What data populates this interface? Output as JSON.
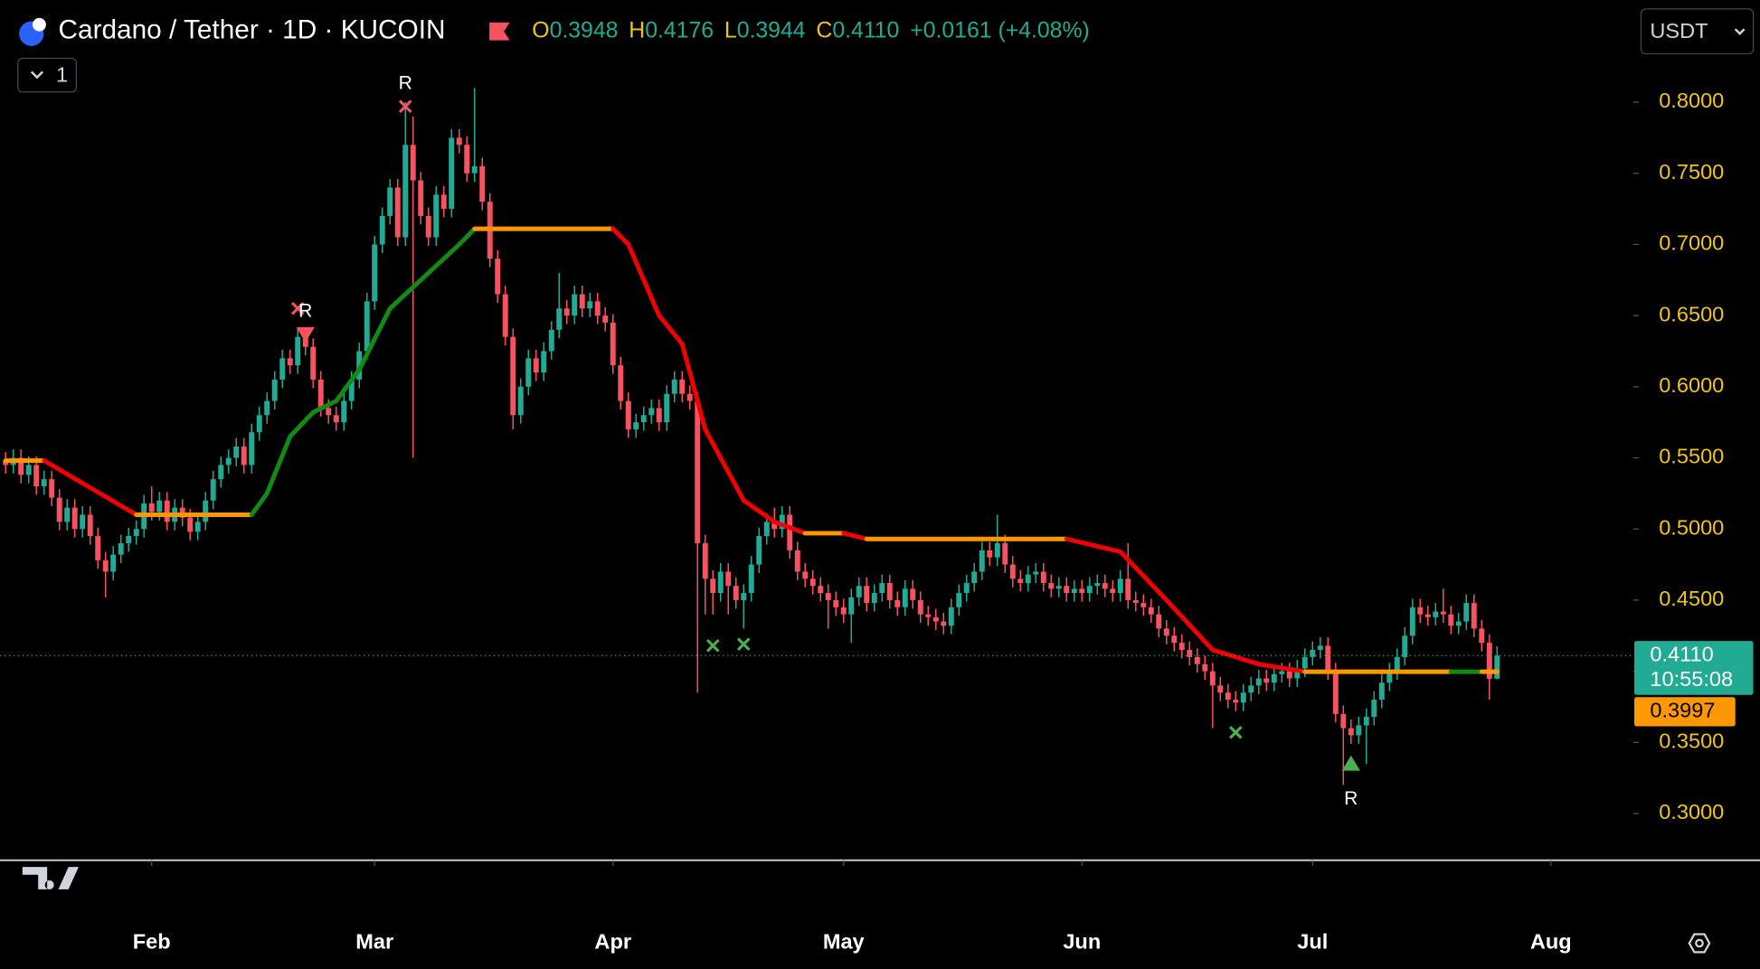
{
  "header": {
    "symbol": "Cardano / Tether · 1D · KUCOIN",
    "ohlc": [
      {
        "key": "O",
        "value": "0.3948"
      },
      {
        "key": "H",
        "value": "0.4176"
      },
      {
        "key": "L",
        "value": "0.3944"
      },
      {
        "key": "C",
        "value": "0.4110"
      }
    ],
    "change": "+0.0161 (+4.08%)",
    "indicator_count": "1",
    "currency": "USDT"
  },
  "chart_data": {
    "type": "candlestick",
    "up_color": "#22ab94",
    "down_color": "#f7525f",
    "ylim": [
      0.2672,
      0.8718
    ],
    "xlim": [
      -0.73,
      211.7
    ],
    "yticks": [
      {
        "value": 0.3,
        "label": "0.3000"
      },
      {
        "value": 0.35,
        "label": "0.3500"
      },
      {
        "value": 0.4,
        "label": "0.4000"
      },
      {
        "value": 0.45,
        "label": "0.4500"
      },
      {
        "value": 0.5,
        "label": "0.5000"
      },
      {
        "value": 0.55,
        "label": "0.5500"
      },
      {
        "value": 0.6,
        "label": "0.6000"
      },
      {
        "value": 0.65,
        "label": "0.6500"
      },
      {
        "value": 0.7,
        "label": "0.7000"
      },
      {
        "value": 0.75,
        "label": "0.7500"
      },
      {
        "value": 0.8,
        "label": "0.8000"
      }
    ],
    "xticks": [
      {
        "value": 19,
        "label": "Feb"
      },
      {
        "value": 48,
        "label": "Mar"
      },
      {
        "value": 79,
        "label": "Apr"
      },
      {
        "value": 109,
        "label": "May"
      },
      {
        "value": 140,
        "label": "Jun"
      },
      {
        "value": 170,
        "label": "Jul"
      },
      {
        "value": 201,
        "label": "Aug"
      }
    ],
    "grid": false,
    "candles": [
      [
        0.548,
        0.554,
        0.539,
        0.545
      ],
      [
        0.545,
        0.556,
        0.539,
        0.55
      ],
      [
        0.55,
        0.556,
        0.532,
        0.538
      ],
      [
        0.538,
        0.551,
        0.532,
        0.545
      ],
      [
        0.545,
        0.551,
        0.524,
        0.53
      ],
      [
        0.53,
        0.541,
        0.524,
        0.535
      ],
      [
        0.535,
        0.541,
        0.516,
        0.522
      ],
      [
        0.522,
        0.528,
        0.499,
        0.505
      ],
      [
        0.505,
        0.521,
        0.499,
        0.515
      ],
      [
        0.515,
        0.521,
        0.494,
        0.5
      ],
      [
        0.5,
        0.516,
        0.494,
        0.51
      ],
      [
        0.51,
        0.516,
        0.489,
        0.495
      ],
      [
        0.495,
        0.501,
        0.472,
        0.478
      ],
      [
        0.478,
        0.484,
        0.452,
        0.47
      ],
      [
        0.47,
        0.488,
        0.464,
        0.482
      ],
      [
        0.482,
        0.496,
        0.476,
        0.49
      ],
      [
        0.49,
        0.501,
        0.484,
        0.495
      ],
      [
        0.495,
        0.506,
        0.489,
        0.5
      ],
      [
        0.5,
        0.524,
        0.494,
        0.518
      ],
      [
        0.518,
        0.53,
        0.506,
        0.512
      ],
      [
        0.512,
        0.526,
        0.506,
        0.52
      ],
      [
        0.52,
        0.526,
        0.499,
        0.505
      ],
      [
        0.505,
        0.521,
        0.499,
        0.515
      ],
      [
        0.515,
        0.521,
        0.502,
        0.508
      ],
      [
        0.508,
        0.514,
        0.492,
        0.498
      ],
      [
        0.498,
        0.511,
        0.492,
        0.505
      ],
      [
        0.505,
        0.526,
        0.499,
        0.52
      ],
      [
        0.52,
        0.541,
        0.514,
        0.535
      ],
      [
        0.535,
        0.551,
        0.529,
        0.545
      ],
      [
        0.545,
        0.556,
        0.539,
        0.55
      ],
      [
        0.55,
        0.564,
        0.544,
        0.558
      ],
      [
        0.558,
        0.564,
        0.539,
        0.545
      ],
      [
        0.545,
        0.574,
        0.539,
        0.568
      ],
      [
        0.568,
        0.586,
        0.562,
        0.58
      ],
      [
        0.58,
        0.596,
        0.574,
        0.59
      ],
      [
        0.59,
        0.611,
        0.584,
        0.605
      ],
      [
        0.605,
        0.626,
        0.599,
        0.62
      ],
      [
        0.62,
        0.626,
        0.609,
        0.615
      ],
      [
        0.615,
        0.641,
        0.609,
        0.635
      ],
      [
        0.635,
        0.641,
        0.622,
        0.628
      ],
      [
        0.628,
        0.634,
        0.599,
        0.605
      ],
      [
        0.605,
        0.611,
        0.579,
        0.585
      ],
      [
        0.585,
        0.591,
        0.574,
        0.58
      ],
      [
        0.58,
        0.586,
        0.569,
        0.575
      ],
      [
        0.575,
        0.596,
        0.569,
        0.59
      ],
      [
        0.59,
        0.611,
        0.584,
        0.605
      ],
      [
        0.605,
        0.631,
        0.599,
        0.625
      ],
      [
        0.625,
        0.666,
        0.619,
        0.66
      ],
      [
        0.66,
        0.706,
        0.654,
        0.7
      ],
      [
        0.7,
        0.726,
        0.694,
        0.72
      ],
      [
        0.72,
        0.746,
        0.714,
        0.74
      ],
      [
        0.74,
        0.746,
        0.699,
        0.705
      ],
      [
        0.705,
        0.8,
        0.699,
        0.77
      ],
      [
        0.77,
        0.79,
        0.55,
        0.745
      ],
      [
        0.745,
        0.751,
        0.714,
        0.72
      ],
      [
        0.72,
        0.726,
        0.699,
        0.705
      ],
      [
        0.705,
        0.741,
        0.699,
        0.735
      ],
      [
        0.735,
        0.741,
        0.719,
        0.725
      ],
      [
        0.725,
        0.781,
        0.719,
        0.775
      ],
      [
        0.775,
        0.781,
        0.764,
        0.77
      ],
      [
        0.77,
        0.776,
        0.744,
        0.75
      ],
      [
        0.75,
        0.81,
        0.744,
        0.755
      ],
      [
        0.755,
        0.761,
        0.724,
        0.73
      ],
      [
        0.73,
        0.736,
        0.684,
        0.69
      ],
      [
        0.69,
        0.696,
        0.659,
        0.665
      ],
      [
        0.665,
        0.671,
        0.629,
        0.635
      ],
      [
        0.635,
        0.641,
        0.57,
        0.58
      ],
      [
        0.58,
        0.606,
        0.574,
        0.6
      ],
      [
        0.6,
        0.626,
        0.594,
        0.62
      ],
      [
        0.62,
        0.626,
        0.604,
        0.61
      ],
      [
        0.61,
        0.631,
        0.604,
        0.625
      ],
      [
        0.625,
        0.646,
        0.619,
        0.64
      ],
      [
        0.64,
        0.68,
        0.634,
        0.655
      ],
      [
        0.655,
        0.661,
        0.644,
        0.65
      ],
      [
        0.65,
        0.671,
        0.644,
        0.665
      ],
      [
        0.665,
        0.671,
        0.649,
        0.655
      ],
      [
        0.655,
        0.666,
        0.649,
        0.66
      ],
      [
        0.66,
        0.666,
        0.644,
        0.65
      ],
      [
        0.65,
        0.656,
        0.639,
        0.645
      ],
      [
        0.645,
        0.651,
        0.609,
        0.615
      ],
      [
        0.615,
        0.621,
        0.584,
        0.59
      ],
      [
        0.59,
        0.596,
        0.564,
        0.57
      ],
      [
        0.57,
        0.581,
        0.564,
        0.575
      ],
      [
        0.575,
        0.586,
        0.569,
        0.58
      ],
      [
        0.58,
        0.591,
        0.574,
        0.585
      ],
      [
        0.585,
        0.591,
        0.569,
        0.575
      ],
      [
        0.575,
        0.601,
        0.569,
        0.595
      ],
      [
        0.595,
        0.611,
        0.589,
        0.605
      ],
      [
        0.605,
        0.611,
        0.589,
        0.595
      ],
      [
        0.595,
        0.601,
        0.584,
        0.59
      ],
      [
        0.59,
        0.596,
        0.385,
        0.49
      ],
      [
        0.49,
        0.496,
        0.44,
        0.465
      ],
      [
        0.465,
        0.471,
        0.44,
        0.455
      ],
      [
        0.455,
        0.476,
        0.449,
        0.47
      ],
      [
        0.47,
        0.476,
        0.44,
        0.46
      ],
      [
        0.46,
        0.466,
        0.444,
        0.45
      ],
      [
        0.45,
        0.461,
        0.43,
        0.455
      ],
      [
        0.455,
        0.481,
        0.449,
        0.475
      ],
      [
        0.475,
        0.501,
        0.469,
        0.495
      ],
      [
        0.495,
        0.511,
        0.489,
        0.505
      ],
      [
        0.505,
        0.515,
        0.494,
        0.5
      ],
      [
        0.5,
        0.516,
        0.494,
        0.51
      ],
      [
        0.51,
        0.516,
        0.479,
        0.485
      ],
      [
        0.485,
        0.491,
        0.464,
        0.47
      ],
      [
        0.47,
        0.476,
        0.459,
        0.465
      ],
      [
        0.465,
        0.471,
        0.454,
        0.46
      ],
      [
        0.46,
        0.466,
        0.449,
        0.455
      ],
      [
        0.455,
        0.461,
        0.43,
        0.45
      ],
      [
        0.45,
        0.456,
        0.439,
        0.445
      ],
      [
        0.445,
        0.451,
        0.434,
        0.44
      ],
      [
        0.44,
        0.458,
        0.42,
        0.452
      ],
      [
        0.452,
        0.466,
        0.446,
        0.46
      ],
      [
        0.46,
        0.466,
        0.442,
        0.448
      ],
      [
        0.448,
        0.461,
        0.442,
        0.455
      ],
      [
        0.455,
        0.468,
        0.449,
        0.462
      ],
      [
        0.462,
        0.468,
        0.444,
        0.45
      ],
      [
        0.45,
        0.456,
        0.439,
        0.445
      ],
      [
        0.445,
        0.464,
        0.439,
        0.458
      ],
      [
        0.458,
        0.464,
        0.444,
        0.45
      ],
      [
        0.45,
        0.456,
        0.434,
        0.44
      ],
      [
        0.44,
        0.446,
        0.432,
        0.438
      ],
      [
        0.438,
        0.444,
        0.429,
        0.435
      ],
      [
        0.435,
        0.441,
        0.426,
        0.432
      ],
      [
        0.432,
        0.451,
        0.426,
        0.445
      ],
      [
        0.445,
        0.461,
        0.439,
        0.455
      ],
      [
        0.455,
        0.468,
        0.449,
        0.462
      ],
      [
        0.462,
        0.476,
        0.456,
        0.47
      ],
      [
        0.47,
        0.491,
        0.464,
        0.485
      ],
      [
        0.485,
        0.491,
        0.474,
        0.48
      ],
      [
        0.48,
        0.51,
        0.474,
        0.49
      ],
      [
        0.49,
        0.496,
        0.469,
        0.475
      ],
      [
        0.475,
        0.481,
        0.459,
        0.465
      ],
      [
        0.465,
        0.471,
        0.456,
        0.462
      ],
      [
        0.462,
        0.474,
        0.456,
        0.468
      ],
      [
        0.468,
        0.476,
        0.462,
        0.47
      ],
      [
        0.47,
        0.476,
        0.456,
        0.462
      ],
      [
        0.462,
        0.468,
        0.452,
        0.458
      ],
      [
        0.458,
        0.466,
        0.452,
        0.46
      ],
      [
        0.46,
        0.466,
        0.449,
        0.455
      ],
      [
        0.455,
        0.464,
        0.449,
        0.458
      ],
      [
        0.458,
        0.464,
        0.449,
        0.455
      ],
      [
        0.455,
        0.466,
        0.449,
        0.46
      ],
      [
        0.46,
        0.468,
        0.454,
        0.462
      ],
      [
        0.462,
        0.468,
        0.452,
        0.458
      ],
      [
        0.458,
        0.464,
        0.449,
        0.455
      ],
      [
        0.455,
        0.471,
        0.449,
        0.465
      ],
      [
        0.465,
        0.49,
        0.444,
        0.45
      ],
      [
        0.45,
        0.456,
        0.442,
        0.448
      ],
      [
        0.448,
        0.454,
        0.439,
        0.445
      ],
      [
        0.445,
        0.451,
        0.434,
        0.44
      ],
      [
        0.44,
        0.446,
        0.424,
        0.43
      ],
      [
        0.43,
        0.436,
        0.419,
        0.425
      ],
      [
        0.425,
        0.431,
        0.414,
        0.42
      ],
      [
        0.42,
        0.426,
        0.409,
        0.415
      ],
      [
        0.415,
        0.421,
        0.404,
        0.41
      ],
      [
        0.41,
        0.416,
        0.399,
        0.405
      ],
      [
        0.405,
        0.411,
        0.394,
        0.4
      ],
      [
        0.4,
        0.406,
        0.36,
        0.39
      ],
      [
        0.39,
        0.396,
        0.379,
        0.385
      ],
      [
        0.385,
        0.391,
        0.374,
        0.38
      ],
      [
        0.38,
        0.386,
        0.372,
        0.378
      ],
      [
        0.378,
        0.391,
        0.372,
        0.385
      ],
      [
        0.385,
        0.396,
        0.379,
        0.39
      ],
      [
        0.39,
        0.401,
        0.384,
        0.395
      ],
      [
        0.395,
        0.401,
        0.386,
        0.392
      ],
      [
        0.392,
        0.404,
        0.386,
        0.398
      ],
      [
        0.398,
        0.406,
        0.392,
        0.4
      ],
      [
        0.4,
        0.406,
        0.389,
        0.395
      ],
      [
        0.395,
        0.408,
        0.389,
        0.402
      ],
      [
        0.402,
        0.416,
        0.396,
        0.41
      ],
      [
        0.41,
        0.421,
        0.404,
        0.415
      ],
      [
        0.415,
        0.424,
        0.409,
        0.418
      ],
      [
        0.418,
        0.424,
        0.394,
        0.4
      ],
      [
        0.4,
        0.406,
        0.364,
        0.37
      ],
      [
        0.37,
        0.376,
        0.32,
        0.36
      ],
      [
        0.36,
        0.366,
        0.349,
        0.355
      ],
      [
        0.355,
        0.368,
        0.349,
        0.362
      ],
      [
        0.362,
        0.374,
        0.335,
        0.368
      ],
      [
        0.368,
        0.386,
        0.362,
        0.38
      ],
      [
        0.38,
        0.398,
        0.374,
        0.392
      ],
      [
        0.392,
        0.406,
        0.386,
        0.4
      ],
      [
        0.4,
        0.416,
        0.394,
        0.41
      ],
      [
        0.41,
        0.431,
        0.404,
        0.425
      ],
      [
        0.425,
        0.451,
        0.419,
        0.445
      ],
      [
        0.445,
        0.451,
        0.434,
        0.44
      ],
      [
        0.44,
        0.446,
        0.432,
        0.438
      ],
      [
        0.438,
        0.448,
        0.432,
        0.442
      ],
      [
        0.442,
        0.458,
        0.434,
        0.44
      ],
      [
        0.44,
        0.446,
        0.426,
        0.432
      ],
      [
        0.432,
        0.441,
        0.426,
        0.435
      ],
      [
        0.435,
        0.454,
        0.429,
        0.448
      ],
      [
        0.448,
        0.454,
        0.424,
        0.43
      ],
      [
        0.43,
        0.436,
        0.414,
        0.42
      ],
      [
        0.42,
        0.426,
        0.38,
        0.3948
      ],
      [
        0.3948,
        0.4176,
        0.3944,
        0.411
      ]
    ],
    "trail": {
      "x": [
        0,
        5,
        17,
        32,
        34,
        37,
        40,
        43,
        46,
        50,
        55,
        59,
        61,
        79,
        81,
        85,
        88,
        91,
        96,
        100,
        104,
        109,
        112,
        138,
        145,
        151,
        157,
        163,
        169,
        188,
        192,
        194
      ],
      "values": [
        0.548,
        0.548,
        0.51,
        0.51,
        0.525,
        0.565,
        0.582,
        0.59,
        0.612,
        0.655,
        0.68,
        0.7,
        0.711,
        0.711,
        0.7,
        0.65,
        0.63,
        0.57,
        0.52,
        0.505,
        0.497,
        0.497,
        0.493,
        0.493,
        0.484,
        0.45,
        0.415,
        0.405,
        0.3997,
        0.3997,
        0.3997,
        0.3997
      ],
      "segment_colors": [
        "#ff9800",
        "#f00000",
        "#ff9800",
        "#138a13",
        "#138a13",
        "#138a13",
        "#138a13",
        "#138a13",
        "#138a13",
        "#138a13",
        "#138a13",
        "#138a13",
        "#ff9800",
        "#f00000",
        "#f00000",
        "#f00000",
        "#f00000",
        "#f00000",
        "#f00000",
        "#f00000",
        "#ff9800",
        "#f00000",
        "#ff9800",
        "#f00000",
        "#f00000",
        "#f00000",
        "#f00000",
        "#f00000",
        "#ff9800",
        "#138a13",
        "#ff9800"
      ]
    },
    "signals": [
      {
        "x": 52,
        "y": 0.797,
        "shape": "cross",
        "color": "#f7525f",
        "label": "R",
        "label_side": "above"
      },
      {
        "x": 38,
        "y": 0.655,
        "shape": "cross",
        "color": "#f7525f"
      },
      {
        "x": 39,
        "y": 0.637,
        "shape": "triangle-down",
        "color": "#f7525f",
        "label": "R",
        "label_side": "above"
      },
      {
        "x": 92,
        "y": 0.418,
        "shape": "cross",
        "color": "#4caf50"
      },
      {
        "x": 96,
        "y": 0.419,
        "shape": "cross",
        "color": "#4caf50"
      },
      {
        "x": 160,
        "y": 0.357,
        "shape": "cross",
        "color": "#4caf50"
      },
      {
        "x": 175,
        "y": 0.335,
        "shape": "triangle-up",
        "color": "#4caf50",
        "label": "R",
        "label_side": "below"
      }
    ],
    "last_price": {
      "label": "0.4110",
      "countdown": "10:55:08",
      "color": "#22ab94"
    },
    "trail_tag": {
      "value": 0.3997,
      "label": "0.3997",
      "color": "#ff9800"
    }
  }
}
